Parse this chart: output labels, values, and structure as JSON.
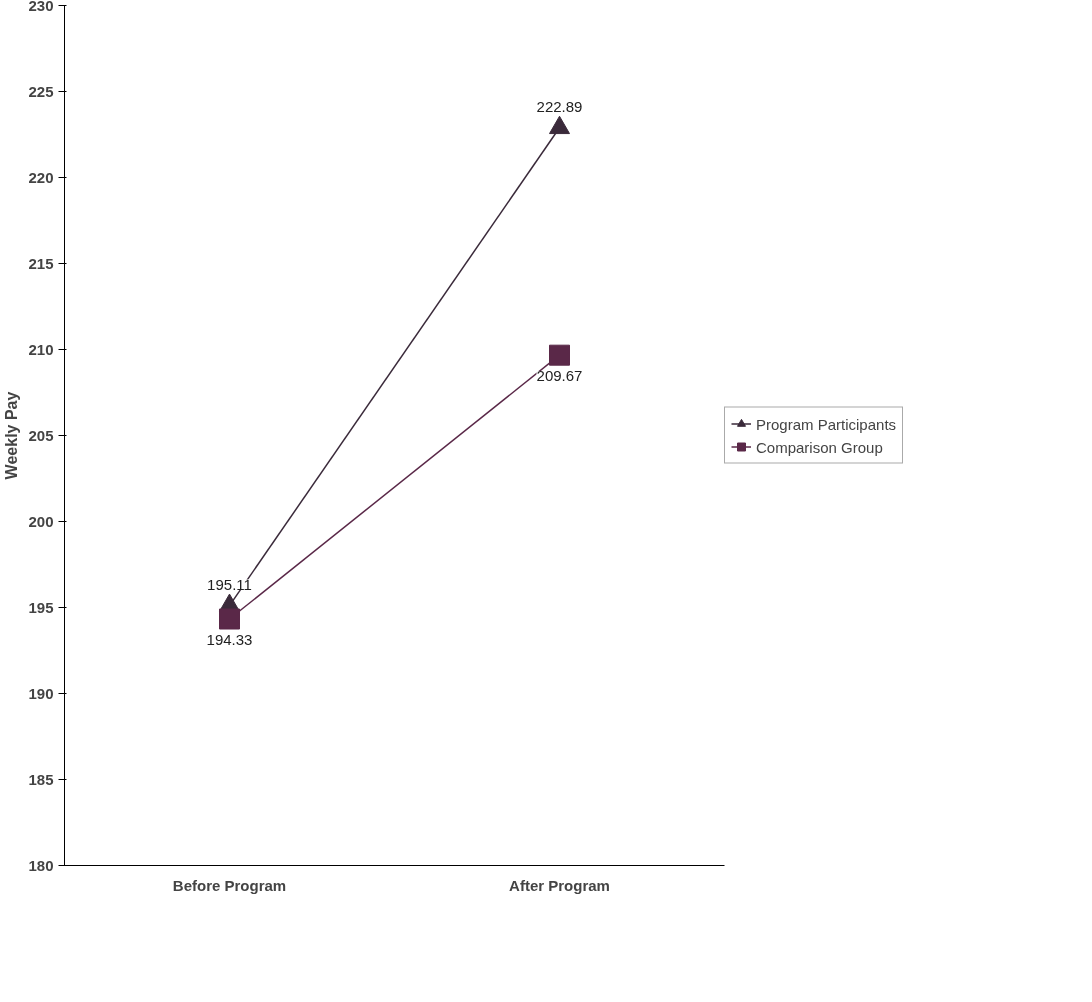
{
  "chart_data": {
    "type": "line",
    "ylabel": "Weekly Pay",
    "categories": [
      "Before Program",
      "After Program"
    ],
    "series": [
      {
        "name": "Program Participants",
        "color": "#3a2a3a",
        "marker": "triangle",
        "values": [
          195.11,
          222.89
        ]
      },
      {
        "name": "Comparison Group",
        "color": "#5a2848",
        "marker": "square",
        "values": [
          194.33,
          209.67
        ]
      }
    ],
    "ylim": [
      180,
      230
    ],
    "yticks": [
      180,
      185,
      190,
      195,
      200,
      205,
      210,
      215,
      220,
      225,
      230
    ],
    "data_labels": true,
    "grid": false,
    "legend": "right"
  }
}
